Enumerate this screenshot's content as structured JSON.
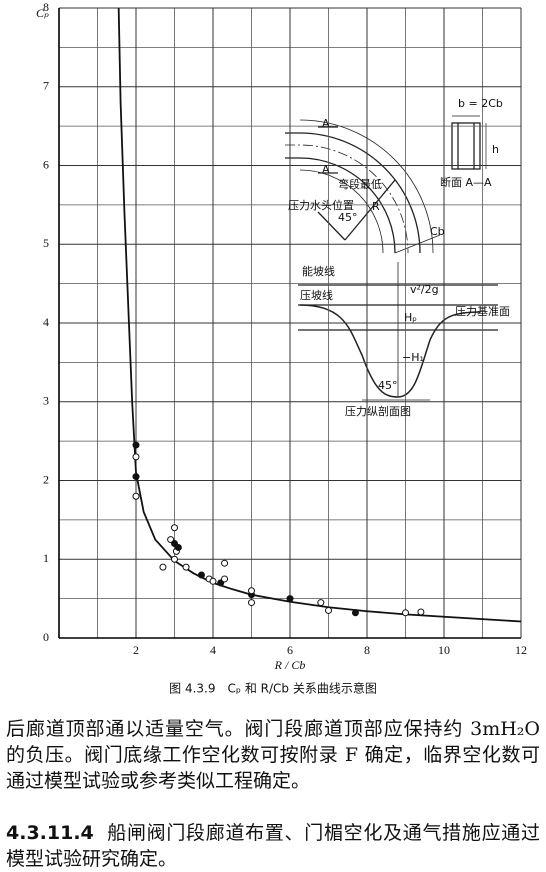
{
  "chart_data": {
    "type": "line",
    "title": "图 4.3.9　Cₚ 和 R/Cb 关系曲线示意图",
    "xlabel": "R / Cb",
    "ylabel": "Cₚ",
    "x": [
      1.55,
      1.6,
      1.7,
      1.8,
      1.9,
      2,
      2.2,
      2.5,
      3,
      3.5,
      4,
      4.5,
      5,
      6,
      7,
      8,
      9,
      10,
      11,
      12
    ],
    "series": [
      {
        "color": "#111111",
        "values": [
          8,
          6.8,
          5.4,
          4.2,
          3.0,
          2.1,
          1.6,
          1.25,
          0.98,
          0.82,
          0.7,
          0.62,
          0.55,
          0.46,
          0.39,
          0.34,
          0.3,
          0.27,
          0.24,
          0.21
        ]
      }
    ],
    "scatter": {
      "x": [
        2,
        2,
        2,
        2,
        3,
        2.9,
        3,
        3.05,
        3,
        3.1,
        2.7,
        3.3,
        3.7,
        3.9,
        4,
        4.2,
        4.3,
        4.3,
        5,
        5,
        5,
        6,
        6.8,
        7,
        7.7,
        9,
        9.4
      ],
      "y": [
        2.45,
        2.3,
        1.8,
        2.05,
        1.4,
        1.25,
        1.2,
        1.1,
        1.0,
        1.15,
        0.9,
        0.9,
        0.8,
        0.75,
        0.72,
        0.7,
        0.75,
        0.95,
        0.55,
        0.6,
        0.45,
        0.5,
        0.45,
        0.35,
        0.32,
        0.32,
        0.33
      ],
      "color": "#111111"
    },
    "xlim": [
      0,
      12
    ],
    "ylim": [
      0,
      8
    ],
    "xticks": [
      2,
      4,
      6,
      8,
      10,
      12
    ],
    "yticks": [
      0,
      1,
      2,
      3,
      4,
      5,
      6,
      7,
      8
    ],
    "xgrid_minor": [
      1,
      3,
      5,
      7,
      9,
      11
    ],
    "ygrid_minor": [
      0.5,
      1.5,
      2.5,
      3.5,
      4.5,
      5.5,
      6.5,
      7.5
    ],
    "grid": true,
    "annotations": [
      "A",
      "A",
      "弯段最低",
      "压力水头位置",
      "45°",
      "R",
      "Cb",
      "b = 2Cb",
      "h",
      "断面 A—A",
      "能坡线",
      "压坡线",
      "v²/2g",
      "Hₚ",
      "−H₁",
      "压力基准面",
      "45°",
      "压力纵剖面图"
    ]
  },
  "body": {
    "paragraphs": [
      "后廊道顶部通以适量空气。阀门段廊道顶部应保持约 3mH₂O 的负压。阀门底缘工作空化数可按附录 F 确定，临界空化数可通过模型试验或参考类似工程确定。"
    ],
    "clause_number": "4.3.11.4",
    "clause_text": "船闸阀门段廊道布置、门楣空化及通气措施应通过模型试验研究确定。"
  }
}
